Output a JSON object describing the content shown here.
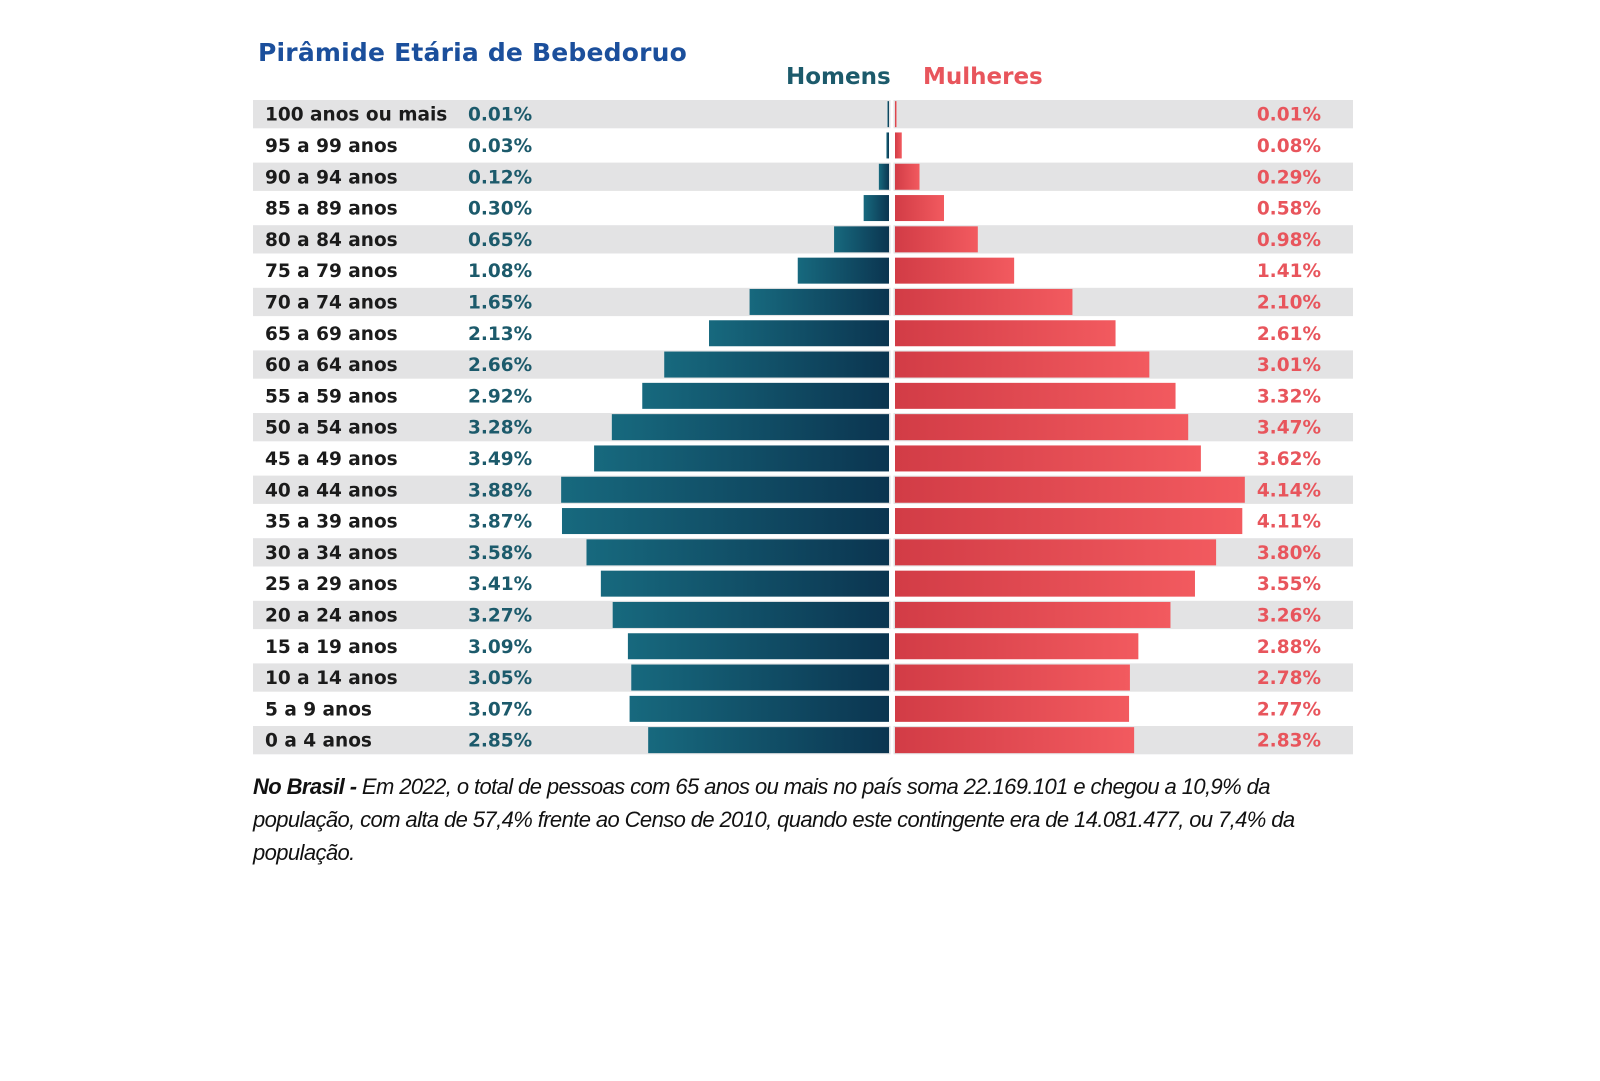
{
  "title": "Pirâmide Etária de Bebedoruo",
  "legend": {
    "men": "Homens",
    "women": "Mulheres"
  },
  "colors": {
    "men": "#0f5a6e",
    "women": "#ef5258",
    "row_bg": "#e3e3e4",
    "title": "#1b4f9c"
  },
  "chart_data": {
    "type": "bar",
    "categories": [
      "100 anos ou mais",
      "95 a 99 anos",
      "90 a 94 anos",
      "85 a 89 anos",
      "80 a 84 anos",
      "75 a 79 anos",
      "70 a 74 anos",
      "65 a 69 anos",
      "60 a 64 anos",
      "55 a 59 anos",
      "50 a 54 anos",
      "45 a 49 anos",
      "40 a 44 anos",
      "35 a 39 anos",
      "30 a 34 anos",
      "25 a 29 anos",
      "20 a 24 anos",
      "15 a 19 anos",
      "10 a 14 anos",
      "5 a 9 anos",
      "0 a 4 anos"
    ],
    "series": [
      {
        "name": "Homens",
        "values": [
          0.01,
          0.03,
          0.12,
          0.3,
          0.65,
          1.08,
          1.65,
          2.13,
          2.66,
          2.92,
          3.28,
          3.49,
          3.88,
          3.87,
          3.58,
          3.41,
          3.27,
          3.09,
          3.05,
          3.07,
          2.85
        ],
        "labels": [
          "0.01%",
          "0.03%",
          "0.12%",
          "0.30%",
          "0.65%",
          "1.08%",
          "1.65%",
          "2.13%",
          "2.66%",
          "2.92%",
          "3.28%",
          "3.49%",
          "3.88%",
          "3.87%",
          "3.58%",
          "3.41%",
          "3.27%",
          "3.09%",
          "3.05%",
          "3.07%",
          "2.85%"
        ]
      },
      {
        "name": "Mulheres",
        "values": [
          0.01,
          0.08,
          0.29,
          0.58,
          0.98,
          1.41,
          2.1,
          2.61,
          3.01,
          3.32,
          3.47,
          3.62,
          4.14,
          4.11,
          3.8,
          3.55,
          3.26,
          2.88,
          2.78,
          2.77,
          2.83
        ],
        "labels": [
          "0.01%",
          "0.08%",
          "0.29%",
          "0.58%",
          "0.98%",
          "1.41%",
          "2.10%",
          "2.61%",
          "3.01%",
          "3.32%",
          "3.47%",
          "3.62%",
          "4.14%",
          "4.11%",
          "3.80%",
          "3.55%",
          "3.26%",
          "2.88%",
          "2.78%",
          "2.77%",
          "2.83%"
        ]
      }
    ]
  },
  "note": {
    "bold": "No Brasil -",
    "text": " Em 2022, o total de pessoas com 65 anos ou mais no país soma 22.169.101 e chegou a 10,9% da população, com alta de 57,4% frente ao Censo de 2010, quando este contingente era de 14.081.477, ou 7,4% da população."
  }
}
